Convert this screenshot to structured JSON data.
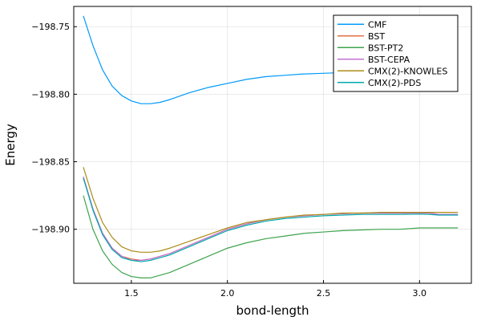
{
  "chart_data": {
    "type": "line",
    "title": "",
    "xlabel": "bond-length",
    "ylabel": "Energy",
    "xlim": [
      1.2,
      3.27
    ],
    "ylim": [
      -198.94,
      -198.735
    ],
    "x_ticks": [
      1.5,
      2.0,
      2.5,
      3.0
    ],
    "x_tick_labels": [
      "1.5",
      "2.0",
      "2.5",
      "3.0"
    ],
    "y_ticks": [
      -198.75,
      -198.8,
      -198.85,
      -198.9
    ],
    "y_tick_labels": [
      "−198.75",
      "−198.80",
      "−198.85",
      "−198.90"
    ],
    "grid": true,
    "legend_position": "top-right",
    "x": [
      1.25,
      1.3,
      1.35,
      1.4,
      1.45,
      1.5,
      1.55,
      1.6,
      1.65,
      1.7,
      1.8,
      1.9,
      2.0,
      2.1,
      2.2,
      2.3,
      2.4,
      2.5,
      2.6,
      2.7,
      2.8,
      2.9,
      3.0,
      3.05,
      3.1,
      3.2
    ],
    "series": [
      {
        "name": "CMF",
        "color": "#009AFA",
        "values": [
          -198.742,
          -198.764,
          -198.782,
          -198.794,
          -198.801,
          -198.805,
          -198.807,
          -198.807,
          -198.806,
          -198.804,
          -198.799,
          -198.795,
          -198.792,
          -198.789,
          -198.787,
          -198.786,
          -198.785,
          -198.7845,
          -198.784,
          -198.7835,
          -198.783,
          -198.783,
          -198.7825,
          -198.7825,
          -198.7825,
          -198.7825
        ]
      },
      {
        "name": "BST",
        "color": "#E36F47",
        "values": [
          -198.862,
          -198.885,
          -198.903,
          -198.914,
          -198.92,
          -198.922,
          -198.923,
          -198.922,
          -198.92,
          -198.918,
          -198.912,
          -198.906,
          -198.9,
          -198.896,
          -198.893,
          -198.891,
          -198.89,
          -198.889,
          -198.8885,
          -198.888,
          -198.888,
          -198.888,
          -198.888,
          -198.888,
          -198.889,
          -198.889
        ]
      },
      {
        "name": "BST-PT2",
        "color": "#3EA44E",
        "values": [
          -198.875,
          -198.9,
          -198.916,
          -198.926,
          -198.932,
          -198.935,
          -198.936,
          -198.936,
          -198.934,
          -198.932,
          -198.926,
          -198.92,
          -198.914,
          -198.91,
          -198.907,
          -198.905,
          -198.903,
          -198.902,
          -198.901,
          -198.9005,
          -198.9,
          -198.9,
          -198.899,
          -198.899,
          -198.899,
          -198.899
        ]
      },
      {
        "name": "BST-CEPA",
        "color": "#C271D2",
        "values": [
          -198.861,
          -198.885,
          -198.903,
          -198.914,
          -198.92,
          -198.923,
          -198.923,
          -198.922,
          -198.92,
          -198.918,
          -198.912,
          -198.906,
          -198.9,
          -198.896,
          -198.893,
          -198.891,
          -198.89,
          -198.889,
          -198.8885,
          -198.888,
          -198.888,
          -198.888,
          -198.888,
          -198.888,
          -198.889,
          -198.889
        ]
      },
      {
        "name": "CMX(2)-KNOWLES",
        "color": "#AC8D18",
        "values": [
          -198.854,
          -198.877,
          -198.895,
          -198.906,
          -198.913,
          -198.916,
          -198.917,
          -198.917,
          -198.916,
          -198.914,
          -198.909,
          -198.904,
          -198.899,
          -198.895,
          -198.893,
          -198.891,
          -198.8895,
          -198.889,
          -198.888,
          -198.888,
          -198.8875,
          -198.8875,
          -198.8875,
          -198.8875,
          -198.8875,
          -198.8875
        ]
      },
      {
        "name": "CMX(2)-PDS",
        "color": "#00A9AD",
        "values": [
          -198.862,
          -198.886,
          -198.904,
          -198.915,
          -198.921,
          -198.923,
          -198.924,
          -198.923,
          -198.921,
          -198.919,
          -198.913,
          -198.907,
          -198.901,
          -198.897,
          -198.894,
          -198.892,
          -198.891,
          -198.89,
          -198.8895,
          -198.889,
          -198.889,
          -198.889,
          -198.8888,
          -198.889,
          -198.8895,
          -198.8895
        ]
      }
    ]
  }
}
